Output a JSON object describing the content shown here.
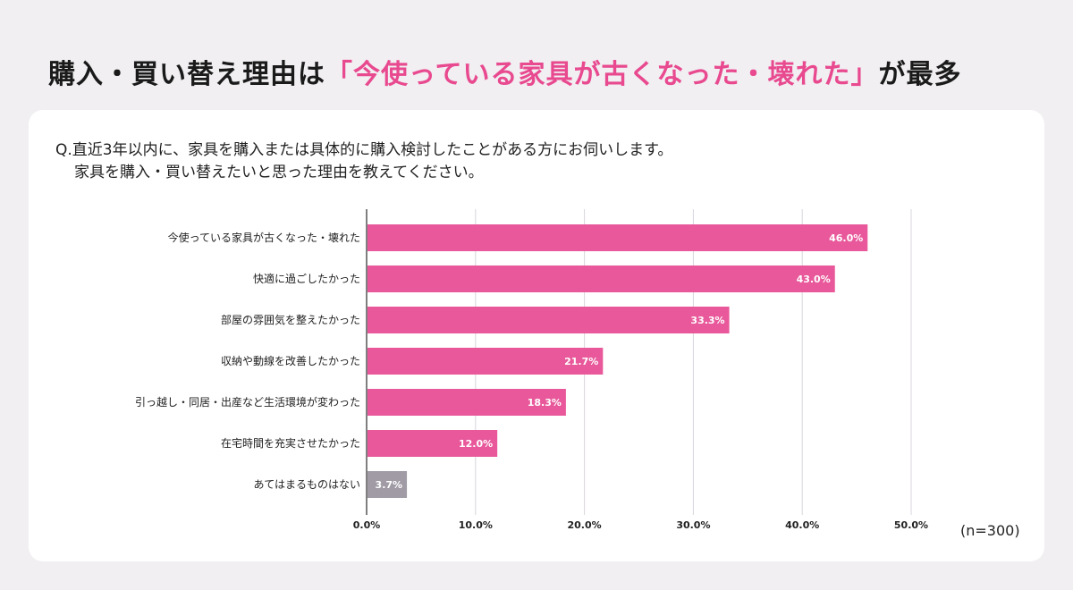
{
  "headline": {
    "part1": "購入・買い替え理由は",
    "highlight": "「今使っている家具が古くなった・壊れた」",
    "part2": "が最多"
  },
  "question": {
    "line1": "Q.直近3年以内に、家具を購入または具体的に購入検討したことがある方にお伺いします。",
    "line2": "家具を購入・買い替えたいと思った理由を教えてください。"
  },
  "sample_note": "(n=300)",
  "colors": {
    "primary": "#e8589a",
    "neutral": "#a09ba5",
    "accent": "#e8498f"
  },
  "chart_data": {
    "type": "bar",
    "orientation": "horizontal",
    "categories": [
      "今使っている家具が古くなった・壊れた",
      "快適に過ごしたかった",
      "部屋の雰囲気を整えたかった",
      "収納や動線を改善したかった",
      "引っ越し・同居・出産など生活環境が変わった",
      "在宅時間を充実させたかった",
      "あてはまるものはない"
    ],
    "values": [
      46.0,
      43.0,
      33.3,
      21.7,
      18.3,
      12.0,
      3.7
    ],
    "value_labels": [
      "46.0%",
      "43.0%",
      "33.3%",
      "21.7%",
      "18.3%",
      "12.0%",
      "3.7%"
    ],
    "bar_colors": [
      "#e8589a",
      "#e8589a",
      "#e8589a",
      "#e8589a",
      "#e8589a",
      "#e8589a",
      "#a09ba5"
    ],
    "xlim": [
      0,
      50
    ],
    "xticks": [
      0,
      10,
      20,
      30,
      40,
      50
    ],
    "xtick_labels": [
      "0.0%",
      "10.0%",
      "20.0%",
      "30.0%",
      "40.0%",
      "50.0%"
    ],
    "grid": true,
    "legend": "none"
  }
}
